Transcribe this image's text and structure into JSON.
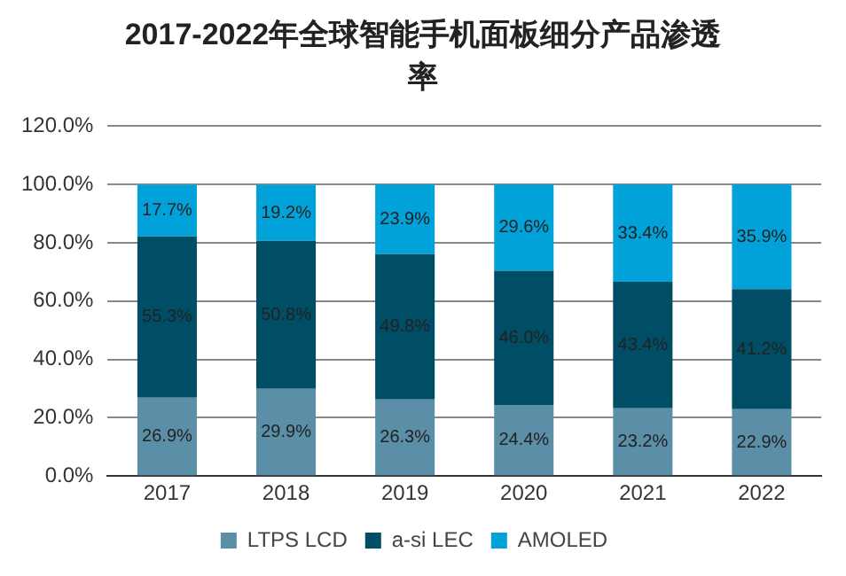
{
  "chart_data": {
    "type": "bar",
    "title": "2017-2022年全球智能手机面板细分产品渗透率",
    "categories": [
      "2017",
      "2018",
      "2019",
      "2020",
      "2021",
      "2022"
    ],
    "stacked": true,
    "ylim": [
      0,
      120
    ],
    "yticks": [
      {
        "value": 0,
        "label": "0.0%"
      },
      {
        "value": 20,
        "label": "20.0%"
      },
      {
        "value": 40,
        "label": "40.0%"
      },
      {
        "value": 60,
        "label": "60.0%"
      },
      {
        "value": 80,
        "label": "80.0%"
      },
      {
        "value": 100,
        "label": "100.0%"
      },
      {
        "value": 120,
        "label": "120.0%"
      }
    ],
    "grid": "y",
    "legend": "bottom",
    "series": [
      {
        "name": "LTPS LCD",
        "color": "#5b8fa8",
        "values": [
          26.9,
          29.9,
          26.3,
          24.4,
          23.2,
          22.9
        ],
        "value_labels": [
          "26.9%",
          "29.9%",
          "26.3%",
          "24.4%",
          "23.2%",
          "22.9%"
        ]
      },
      {
        "name": "a-si LEC",
        "color": "#004d66",
        "values": [
          55.3,
          50.8,
          49.8,
          46.0,
          43.4,
          41.2
        ],
        "value_labels": [
          "55.3%",
          "50.8%",
          "49.8%",
          "46.0%",
          "43.4%",
          "41.2%"
        ]
      },
      {
        "name": "AMOLED",
        "color": "#00a2d9",
        "values": [
          17.7,
          19.2,
          23.9,
          29.6,
          33.4,
          35.9
        ],
        "value_labels": [
          "17.7%",
          "19.2%",
          "23.9%",
          "29.6%",
          "33.4%",
          "35.9%"
        ]
      }
    ]
  }
}
